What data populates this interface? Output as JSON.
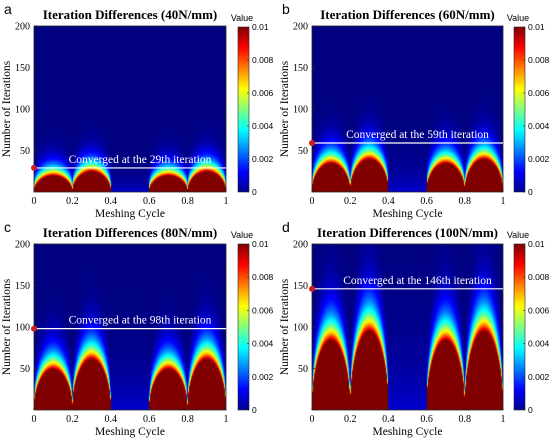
{
  "chart_data": [
    {
      "panel": "a",
      "type": "heatmap",
      "title": "Iteration Differences (40N/mm)",
      "xlabel": "Meshing Cycle",
      "ylabel": "Number of Iterations",
      "xlim": [
        0,
        1
      ],
      "ylim": [
        0,
        200
      ],
      "xticks": [
        "0",
        "0.2",
        "0.4",
        "0.6",
        "0.8",
        "1"
      ],
      "yticks": [
        "50",
        "100",
        "150",
        "200"
      ],
      "colorbar": {
        "title": "Value",
        "min": 0,
        "max": 0.01,
        "ticks": [
          "0",
          "0.002",
          "0.004",
          "0.006",
          "0.008",
          "0.01"
        ]
      },
      "converged_iteration": 29,
      "annotation": "Converged at the 29th iteration",
      "band_peak_iterations": [
        20,
        25,
        20,
        25
      ]
    },
    {
      "panel": "b",
      "type": "heatmap",
      "title": "Iteration Differences (60N/mm)",
      "xlabel": "Meshing Cycle",
      "ylabel": "Number of Iterations",
      "xlim": [
        0,
        1
      ],
      "ylim": [
        0,
        200
      ],
      "xticks": [
        "0",
        "0.2",
        "0.4",
        "0.6",
        "0.8",
        "1"
      ],
      "yticks": [
        "50",
        "100",
        "150",
        "200"
      ],
      "colorbar": {
        "title": "Value",
        "min": 0,
        "max": 0.01,
        "ticks": [
          "0",
          "0.002",
          "0.004",
          "0.006",
          "0.008",
          "0.01"
        ]
      },
      "converged_iteration": 59,
      "annotation": "Converged at the 59th iteration",
      "band_peak_iterations": [
        35,
        40,
        35,
        40
      ]
    },
    {
      "panel": "c",
      "type": "heatmap",
      "title": "Iteration Differences (80N/mm)",
      "xlabel": "Meshing Cycle",
      "ylabel": "Number of Iterations",
      "xlim": [
        0,
        1
      ],
      "ylim": [
        0,
        200
      ],
      "xticks": [
        "0",
        "0.2",
        "0.4",
        "0.6",
        "0.8",
        "1"
      ],
      "yticks": [
        "50",
        "100",
        "150",
        "200"
      ],
      "colorbar": {
        "title": "Value",
        "min": 0,
        "max": 0.01,
        "ticks": [
          "0",
          "0.002",
          "0.004",
          "0.006",
          "0.008",
          "0.01"
        ]
      },
      "converged_iteration": 98,
      "annotation": "Converged at the 98th iteration",
      "band_peak_iterations": [
        50,
        62,
        50,
        62
      ]
    },
    {
      "panel": "d",
      "type": "heatmap",
      "title": "Iteration Differences (100N/mm)",
      "xlabel": "Meshing Cycle",
      "ylabel": "Number of Iterations",
      "xlim": [
        0,
        1
      ],
      "ylim": [
        0,
        200
      ],
      "xticks": [
        "0",
        "0.2",
        "0.4",
        "0.6",
        "0.8",
        "1"
      ],
      "yticks": [
        "50",
        "100",
        "150",
        "200"
      ],
      "colorbar": {
        "title": "Value",
        "min": 0,
        "max": 0.01,
        "ticks": [
          "0",
          "0.002",
          "0.004",
          "0.006",
          "0.008",
          "0.01"
        ]
      },
      "converged_iteration": 146,
      "annotation": "Converged at the 146th iteration",
      "band_peak_iterations": [
        85,
        96,
        85,
        96
      ]
    }
  ],
  "colors": {
    "converged_marker": "#cc1f1f",
    "converged_line": "#ffffff",
    "colormap": "jet"
  }
}
